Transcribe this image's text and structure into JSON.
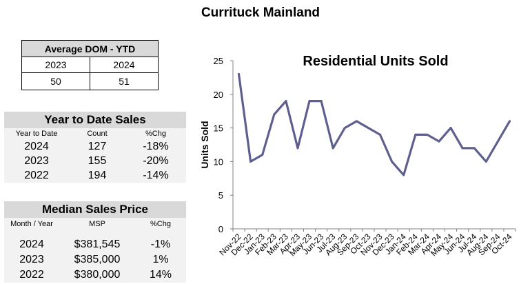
{
  "title": "Currituck Mainland",
  "dom": {
    "header": "Average DOM - YTD",
    "years": [
      "2023",
      "2024"
    ],
    "values": [
      "50",
      "51"
    ]
  },
  "ytd": {
    "title": "Year to Date Sales",
    "headers": [
      "Year to Date",
      "Count",
      "%Chg"
    ],
    "rows": [
      [
        "2024",
        "127",
        "-18%"
      ],
      [
        "2023",
        "155",
        "-20%"
      ],
      [
        "2022",
        "194",
        "-14%"
      ]
    ]
  },
  "msp": {
    "title": "Median Sales Price",
    "headers": [
      "Month / Year",
      "MSP",
      "%Chg"
    ],
    "rows": [
      [
        "2024",
        "$381,545",
        "-1%"
      ],
      [
        "2023",
        "$385,000",
        "1%"
      ],
      [
        "2022",
        "$380,000",
        "14%"
      ]
    ]
  },
  "chart_data": {
    "type": "line",
    "title": "Residential Units Sold",
    "ylabel": "Units Sold",
    "xlabel": "",
    "ylim": [
      0,
      25
    ],
    "yticks": [
      0,
      5,
      10,
      15,
      20,
      25
    ],
    "grid": false,
    "line_color": "#5f5f8f",
    "categories": [
      "Nov-22",
      "Dec-22",
      "Jan-23",
      "Feb-23",
      "Mar-23",
      "Apr-23",
      "May-23",
      "Jun-23",
      "Jul-23",
      "Aug-23",
      "Sep-23",
      "Oct-23",
      "Nov-23",
      "Dec-23",
      "Jan-24",
      "Feb-24",
      "Mar-24",
      "Apr-24",
      "May-24",
      "Jun-24",
      "Jul-24",
      "Aug-24",
      "Sep-24",
      "Oct-24"
    ],
    "values": [
      23,
      10,
      11,
      17,
      19,
      12,
      19,
      19,
      12,
      15,
      16,
      15,
      14,
      10,
      8,
      14,
      14,
      13,
      15,
      12,
      12,
      10,
      13,
      16
    ]
  }
}
